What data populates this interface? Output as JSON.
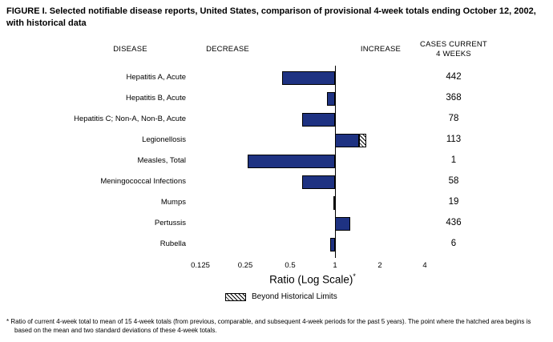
{
  "figure_title": "FIGURE I. Selected notifiable disease reports, United States, comparison of provisional 4-week totals ending October 12, 2002, with historical data",
  "column_headers": {
    "disease": "DISEASE",
    "decrease": "DECREASE",
    "increase": "INCREASE",
    "cases": "CASES CURRENT\n4 WEEKS"
  },
  "chart_data": {
    "type": "bar",
    "orientation": "horizontal",
    "title": "Selected notifiable disease reports, United States, comparison of provisional 4-week totals ending October 12, 2002, with historical data",
    "x_scale": "log",
    "baseline": 1,
    "x_ticks": [
      0.125,
      0.25,
      0.5,
      1,
      2,
      4
    ],
    "x_tick_labels": [
      "0.125",
      "0.25",
      "0.5",
      "1",
      "2",
      "4"
    ],
    "xlabel": "Ratio (Log Scale)",
    "xlabel_sup": "*",
    "legend": {
      "label": "Beyond Historical Limits",
      "style": "hatched"
    },
    "rows": [
      {
        "disease": "Hepatitis A, Acute",
        "ratio": 0.44,
        "cases": "442",
        "beyond_limits": false
      },
      {
        "disease": "Hepatitis B, Acute",
        "ratio": 0.88,
        "cases": "368",
        "beyond_limits": false
      },
      {
        "disease": "Hepatitis C; Non-A, Non-B, Acute",
        "ratio": 0.6,
        "cases": "78",
        "beyond_limits": false
      },
      {
        "disease": "Legionellosis",
        "ratio": 1.62,
        "cases": "113",
        "beyond_limits": true,
        "limit_ratio": 1.45
      },
      {
        "disease": "Measles, Total",
        "ratio": 0.26,
        "cases": "1",
        "beyond_limits": false
      },
      {
        "disease": "Meningococcal Infections",
        "ratio": 0.6,
        "cases": "58",
        "beyond_limits": false
      },
      {
        "disease": "Mumps",
        "ratio": 0.97,
        "cases": "19",
        "beyond_limits": false
      },
      {
        "disease": "Pertussis",
        "ratio": 1.27,
        "cases": "436",
        "beyond_limits": false
      },
      {
        "disease": "Rubella",
        "ratio": 0.93,
        "cases": "6",
        "beyond_limits": false
      }
    ]
  },
  "footnote": "* Ratio of current 4-week total to mean of 15 4-week totals (from previous, comparable, and subsequent 4-week periods for the past 5 years). The point where the hatched area begins is based on the mean and two standard deviations of these 4-week totals.",
  "colors": {
    "bar": "#1e3282",
    "bar_border": "#000000",
    "background": "#ffffff"
  }
}
